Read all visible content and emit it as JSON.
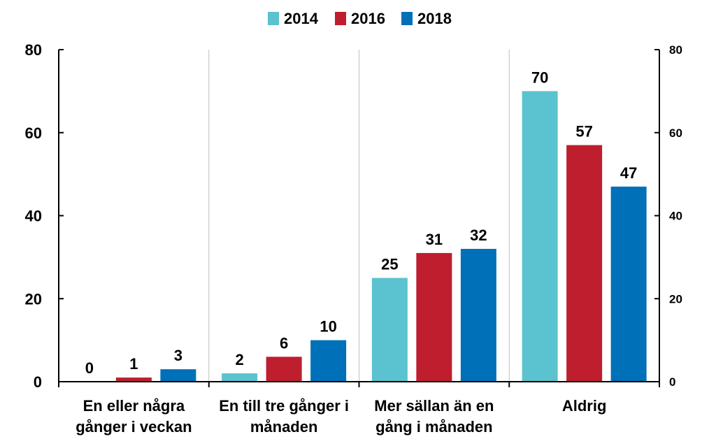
{
  "chart_data": {
    "type": "bar",
    "categories": [
      [
        "En eller några",
        "gånger i veckan"
      ],
      [
        "En till tre gånger i",
        "månaden"
      ],
      [
        "Mer sällan än en",
        "gång i månaden"
      ],
      [
        "Aldrig"
      ]
    ],
    "series": [
      {
        "name": "2014",
        "color": "#5BC2CF",
        "values": [
          0,
          2,
          25,
          70
        ]
      },
      {
        "name": "2016",
        "color": "#BE1E2D",
        "values": [
          1,
          6,
          31,
          57
        ]
      },
      {
        "name": "2018",
        "color": "#0070B8",
        "values": [
          3,
          10,
          32,
          47
        ]
      }
    ],
    "data_labels": [
      [
        "0",
        "2",
        "25",
        "70"
      ],
      [
        "1",
        "6",
        "31",
        "57"
      ],
      [
        "3",
        "10",
        "32",
        "47"
      ]
    ],
    "ylim": [
      0,
      80
    ],
    "yticks": [
      0,
      20,
      40,
      60,
      80
    ],
    "ytick_labels": [
      "0",
      "20",
      "40",
      "60",
      "80"
    ],
    "secondary_axis": true,
    "grid": "vertical category separators",
    "legend_position": "top-center",
    "title": "",
    "xlabel": "",
    "ylabel": ""
  }
}
